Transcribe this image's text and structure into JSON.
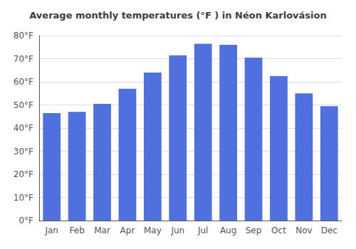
{
  "chart_data": {
    "type": "bar",
    "title": "Average monthly temperatures (°F ) in Néon Karlovásion",
    "categories": [
      "Jan",
      "Feb",
      "Mar",
      "Apr",
      "May",
      "Jun",
      "Jul",
      "Aug",
      "Sep",
      "Oct",
      "Nov",
      "Dec"
    ],
    "values": [
      46.5,
      47.0,
      50.5,
      57.0,
      64.0,
      71.5,
      76.5,
      76.0,
      70.5,
      62.5,
      55.0,
      49.5
    ],
    "ylim": [
      0,
      80
    ],
    "yticks": [
      {
        "value": 0,
        "label": "0°F"
      },
      {
        "value": 10,
        "label": "10°F"
      },
      {
        "value": 20,
        "label": "20°F"
      },
      {
        "value": 30,
        "label": "30°F"
      },
      {
        "value": 40,
        "label": "40°F"
      },
      {
        "value": 50,
        "label": "50°F"
      },
      {
        "value": 60,
        "label": "60°F"
      },
      {
        "value": 70,
        "label": "70°F"
      },
      {
        "value": 80,
        "label": "80°F"
      }
    ],
    "grid": true
  }
}
